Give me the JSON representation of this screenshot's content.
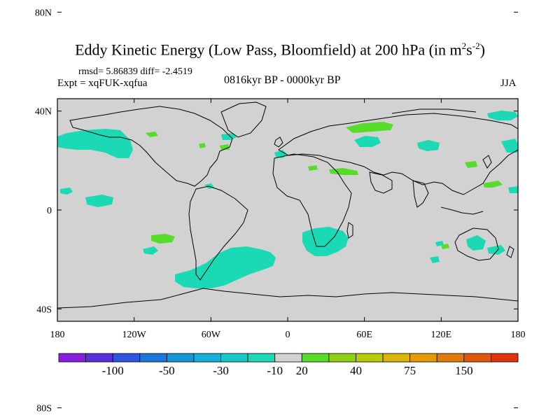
{
  "title": {
    "main": "Eddy Kinetic Energy (Low Pass, Bloomfield) at 200 hPa (in m",
    "sup1": "2",
    "mid": "s",
    "sup2": "-2",
    "end": ")"
  },
  "stats": "rmsd= 5.86839 diff= -2.4519",
  "expt": "Expt = xqFUK-xqfua",
  "period": "0816kyr BP - 0000kyr BP",
  "season": "JJA",
  "axes": {
    "lon_ticks": [
      "180",
      "120W",
      "60W",
      "0",
      "60E",
      "120E",
      "180"
    ],
    "lat_ticks": [
      "80N",
      "40N",
      "0",
      "40S",
      "80S"
    ]
  },
  "colorbar": {
    "colors": [
      "#8a1ee0",
      "#5b2fe0",
      "#2f54e0",
      "#1c78d8",
      "#1296d8",
      "#14b2d8",
      "#18c8c8",
      "#1ad9b4",
      "#d2d2d2",
      "#58dc2a",
      "#90d014",
      "#bcc80a",
      "#dcb40a",
      "#e69a0a",
      "#e07a0c",
      "#e0580c",
      "#e0320c"
    ],
    "labels": [
      "-100",
      "-50",
      "-30",
      "-10",
      "20",
      "40",
      "75",
      "150"
    ]
  },
  "legend_colors": {
    "negative_fill": "#1ad9b4",
    "positive_fill": "#58dc2a",
    "neutral_fill": "#d2d2d2"
  }
}
